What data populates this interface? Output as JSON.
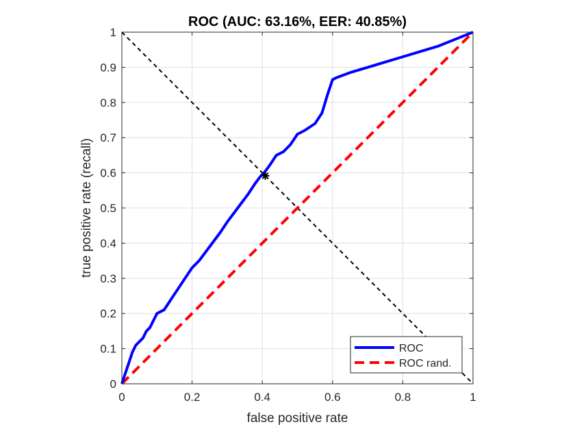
{
  "chart_data": {
    "type": "line",
    "title": "ROC (AUC: 63.16%, EER: 40.85%)",
    "xlabel": "false positive rate",
    "ylabel": "true positive rate (recall)",
    "xlim": [
      0,
      1
    ],
    "ylim": [
      0,
      1
    ],
    "grid": true,
    "legend_position": "bottom-right",
    "x_ticks": [
      "0",
      "0.2",
      "0.4",
      "0.6",
      "0.8",
      "1"
    ],
    "x_tick_values": [
      0,
      0.2,
      0.4,
      0.6,
      0.8,
      1
    ],
    "y_ticks": [
      "0",
      "0.1",
      "0.2",
      "0.3",
      "0.4",
      "0.5",
      "0.6",
      "0.7",
      "0.8",
      "0.9",
      "1"
    ],
    "y_tick_values": [
      0,
      0.1,
      0.2,
      0.3,
      0.4,
      0.5,
      0.6,
      0.7,
      0.8,
      0.9,
      1
    ],
    "series": [
      {
        "name": "ROC",
        "color": "#0000ff",
        "style": "solid",
        "x": [
          0,
          0.01,
          0.02,
          0.03,
          0.04,
          0.05,
          0.06,
          0.07,
          0.08,
          0.09,
          0.1,
          0.11,
          0.12,
          0.14,
          0.16,
          0.18,
          0.2,
          0.22,
          0.25,
          0.28,
          0.3,
          0.33,
          0.36,
          0.38,
          0.395,
          0.405,
          0.42,
          0.44,
          0.46,
          0.48,
          0.5,
          0.52,
          0.55,
          0.57,
          0.585,
          0.6,
          0.61,
          0.65,
          0.7,
          0.75,
          0.8,
          0.85,
          0.9,
          0.95,
          1
        ],
        "y": [
          0,
          0.03,
          0.06,
          0.09,
          0.11,
          0.12,
          0.13,
          0.15,
          0.16,
          0.18,
          0.2,
          0.205,
          0.21,
          0.24,
          0.27,
          0.3,
          0.33,
          0.35,
          0.39,
          0.43,
          0.46,
          0.5,
          0.54,
          0.57,
          0.59,
          0.6,
          0.62,
          0.65,
          0.66,
          0.68,
          0.71,
          0.72,
          0.74,
          0.77,
          0.82,
          0.865,
          0.87,
          0.885,
          0.9,
          0.915,
          0.93,
          0.945,
          0.96,
          0.98,
          1
        ]
      },
      {
        "name": "ROC rand.",
        "color": "#ff0000",
        "style": "dashed",
        "x": [
          0,
          1
        ],
        "y": [
          0,
          1
        ]
      },
      {
        "name": "",
        "color": "#000000",
        "style": "dotted",
        "x": [
          0,
          1
        ],
        "y": [
          1,
          0
        ]
      }
    ],
    "eer_marker": {
      "x": 0.4085,
      "y": 0.5915,
      "color": "#000000"
    }
  }
}
